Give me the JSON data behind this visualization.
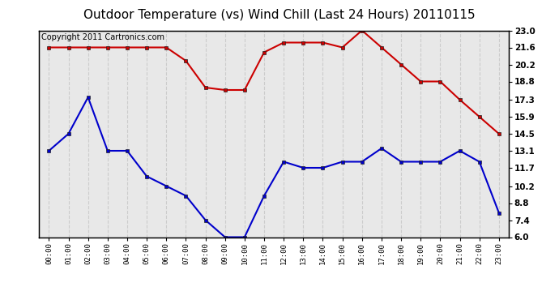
{
  "title": "Outdoor Temperature (vs) Wind Chill (Last 24 Hours) 20110115",
  "copyright": "Copyright 2011 Cartronics.com",
  "hours": [
    "00:00",
    "01:00",
    "02:00",
    "03:00",
    "04:00",
    "05:00",
    "06:00",
    "07:00",
    "08:00",
    "09:00",
    "10:00",
    "11:00",
    "12:00",
    "13:00",
    "14:00",
    "15:00",
    "16:00",
    "17:00",
    "18:00",
    "19:00",
    "20:00",
    "21:00",
    "22:00",
    "23:00"
  ],
  "temp": [
    21.6,
    21.6,
    21.6,
    21.6,
    21.6,
    21.6,
    21.6,
    20.5,
    18.3,
    18.1,
    18.1,
    21.2,
    22.0,
    22.0,
    22.0,
    21.6,
    23.0,
    21.6,
    20.2,
    18.8,
    18.8,
    17.3,
    15.9,
    14.5
  ],
  "wind_chill": [
    13.1,
    14.5,
    17.5,
    13.1,
    13.1,
    11.0,
    10.2,
    9.4,
    7.4,
    6.0,
    6.0,
    9.4,
    12.2,
    11.7,
    11.7,
    12.2,
    12.2,
    13.3,
    12.2,
    12.2,
    12.2,
    13.1,
    12.2,
    8.0
  ],
  "temp_color": "#cc0000",
  "wind_chill_color": "#0000cc",
  "yticks": [
    6.0,
    7.4,
    8.8,
    10.2,
    11.7,
    13.1,
    14.5,
    15.9,
    17.3,
    18.8,
    20.2,
    21.6,
    23.0
  ],
  "ymin": 6.0,
  "ymax": 23.0,
  "bg_color": "#ffffff",
  "plot_bg_color": "#e8e8e8",
  "grid_color": "#cccccc",
  "title_fontsize": 11,
  "copyright_fontsize": 7
}
